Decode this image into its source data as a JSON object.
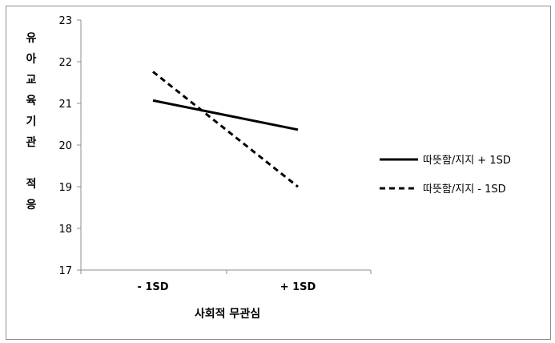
{
  "chart_data": {
    "type": "line",
    "categories": [
      "- 1SD",
      "+ 1SD"
    ],
    "ylim": [
      17,
      23
    ],
    "yticks": [
      "17",
      "18",
      "19",
      "20",
      "21",
      "22",
      "23"
    ],
    "ylabel_lines": [
      "유",
      "아",
      "교",
      "육",
      "기",
      "관",
      "",
      "적",
      "응"
    ],
    "xlabel": "사회적 무관심",
    "legend_position": "right",
    "series": [
      {
        "name": "따뜻함/지지 + 1SD",
        "values": [
          21.07,
          20.37
        ],
        "style": "solid",
        "color": "#000000"
      },
      {
        "name": "따뜻함/지지 - 1SD",
        "values": [
          21.76,
          19.0
        ],
        "style": "dashed",
        "color": "#000000"
      }
    ]
  }
}
